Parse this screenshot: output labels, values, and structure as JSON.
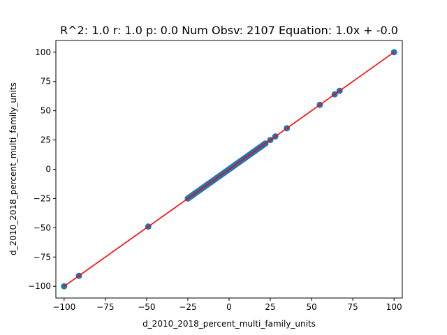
{
  "chart_data": {
    "type": "scatter",
    "title": "R^2: 1.0 r: 1.0 p: 0.0 Num Obsv: 2107 Equation: 1.0x + -0.0",
    "xlabel": "d_2010_2018_percent_multi_family_units",
    "ylabel": "d_2010_2018_percent_multi_family_units",
    "xlim": [
      -105,
      105
    ],
    "ylim": [
      -110,
      110
    ],
    "xticks": [
      -100,
      -75,
      -50,
      -25,
      0,
      25,
      50,
      75,
      100
    ],
    "yticks": [
      -100,
      -75,
      -50,
      -25,
      0,
      25,
      50,
      75,
      100
    ],
    "grid": false,
    "point_color": "#1f77b4",
    "line_color": "#ff0000",
    "fit_line": {
      "slope": 1.0,
      "intercept": -0.0,
      "x_range": [
        -100,
        100
      ]
    },
    "points": [
      [
        -100,
        -100
      ],
      [
        -91,
        -91
      ],
      [
        -49,
        -49
      ],
      [
        -25,
        -25
      ],
      [
        -24,
        -24
      ],
      [
        -23,
        -23
      ],
      [
        -22,
        -22
      ],
      [
        -21,
        -21
      ],
      [
        -20,
        -20
      ],
      [
        -19,
        -19
      ],
      [
        -18,
        -18
      ],
      [
        -17,
        -17
      ],
      [
        -16,
        -16
      ],
      [
        -15,
        -15
      ],
      [
        -14,
        -14
      ],
      [
        -13,
        -13
      ],
      [
        -12,
        -12
      ],
      [
        -11,
        -11
      ],
      [
        -10,
        -10
      ],
      [
        -9,
        -9
      ],
      [
        -8,
        -8
      ],
      [
        -7,
        -7
      ],
      [
        -6,
        -6
      ],
      [
        -5,
        -5
      ],
      [
        -4,
        -4
      ],
      [
        -3,
        -3
      ],
      [
        -2,
        -2
      ],
      [
        -1,
        -1
      ],
      [
        0,
        0
      ],
      [
        1,
        1
      ],
      [
        2,
        2
      ],
      [
        3,
        3
      ],
      [
        4,
        4
      ],
      [
        5,
        5
      ],
      [
        6,
        6
      ],
      [
        7,
        7
      ],
      [
        8,
        8
      ],
      [
        9,
        9
      ],
      [
        10,
        10
      ],
      [
        11,
        11
      ],
      [
        12,
        12
      ],
      [
        13,
        13
      ],
      [
        14,
        14
      ],
      [
        15,
        15
      ],
      [
        16,
        16
      ],
      [
        17,
        17
      ],
      [
        18,
        18
      ],
      [
        19,
        19
      ],
      [
        20,
        20
      ],
      [
        21,
        21
      ],
      [
        22,
        22
      ],
      [
        25,
        25
      ],
      [
        28,
        28
      ],
      [
        35,
        35
      ],
      [
        55,
        55
      ],
      [
        64,
        64
      ],
      [
        67,
        67
      ],
      [
        100,
        100
      ]
    ]
  }
}
